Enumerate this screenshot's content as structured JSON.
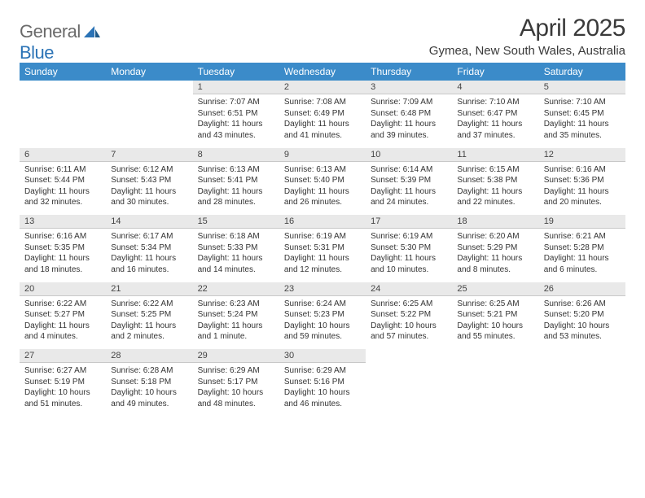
{
  "logo": {
    "text1": "General",
    "text2": "Blue",
    "color1": "#6a6a6a",
    "color2": "#2b73b6"
  },
  "title": "April 2025",
  "location": "Gymea, New South Wales, Australia",
  "header_bg": "#3b8bc9",
  "daynum_bg": "#e9e9e9",
  "days": [
    "Sunday",
    "Monday",
    "Tuesday",
    "Wednesday",
    "Thursday",
    "Friday",
    "Saturday"
  ],
  "weeks": [
    [
      null,
      null,
      {
        "n": "1",
        "sr": "7:07 AM",
        "ss": "6:51 PM",
        "dl": "11 hours and 43 minutes."
      },
      {
        "n": "2",
        "sr": "7:08 AM",
        "ss": "6:49 PM",
        "dl": "11 hours and 41 minutes."
      },
      {
        "n": "3",
        "sr": "7:09 AM",
        "ss": "6:48 PM",
        "dl": "11 hours and 39 minutes."
      },
      {
        "n": "4",
        "sr": "7:10 AM",
        "ss": "6:47 PM",
        "dl": "11 hours and 37 minutes."
      },
      {
        "n": "5",
        "sr": "7:10 AM",
        "ss": "6:45 PM",
        "dl": "11 hours and 35 minutes."
      }
    ],
    [
      {
        "n": "6",
        "sr": "6:11 AM",
        "ss": "5:44 PM",
        "dl": "11 hours and 32 minutes."
      },
      {
        "n": "7",
        "sr": "6:12 AM",
        "ss": "5:43 PM",
        "dl": "11 hours and 30 minutes."
      },
      {
        "n": "8",
        "sr": "6:13 AM",
        "ss": "5:41 PM",
        "dl": "11 hours and 28 minutes."
      },
      {
        "n": "9",
        "sr": "6:13 AM",
        "ss": "5:40 PM",
        "dl": "11 hours and 26 minutes."
      },
      {
        "n": "10",
        "sr": "6:14 AM",
        "ss": "5:39 PM",
        "dl": "11 hours and 24 minutes."
      },
      {
        "n": "11",
        "sr": "6:15 AM",
        "ss": "5:38 PM",
        "dl": "11 hours and 22 minutes."
      },
      {
        "n": "12",
        "sr": "6:16 AM",
        "ss": "5:36 PM",
        "dl": "11 hours and 20 minutes."
      }
    ],
    [
      {
        "n": "13",
        "sr": "6:16 AM",
        "ss": "5:35 PM",
        "dl": "11 hours and 18 minutes."
      },
      {
        "n": "14",
        "sr": "6:17 AM",
        "ss": "5:34 PM",
        "dl": "11 hours and 16 minutes."
      },
      {
        "n": "15",
        "sr": "6:18 AM",
        "ss": "5:33 PM",
        "dl": "11 hours and 14 minutes."
      },
      {
        "n": "16",
        "sr": "6:19 AM",
        "ss": "5:31 PM",
        "dl": "11 hours and 12 minutes."
      },
      {
        "n": "17",
        "sr": "6:19 AM",
        "ss": "5:30 PM",
        "dl": "11 hours and 10 minutes."
      },
      {
        "n": "18",
        "sr": "6:20 AM",
        "ss": "5:29 PM",
        "dl": "11 hours and 8 minutes."
      },
      {
        "n": "19",
        "sr": "6:21 AM",
        "ss": "5:28 PM",
        "dl": "11 hours and 6 minutes."
      }
    ],
    [
      {
        "n": "20",
        "sr": "6:22 AM",
        "ss": "5:27 PM",
        "dl": "11 hours and 4 minutes."
      },
      {
        "n": "21",
        "sr": "6:22 AM",
        "ss": "5:25 PM",
        "dl": "11 hours and 2 minutes."
      },
      {
        "n": "22",
        "sr": "6:23 AM",
        "ss": "5:24 PM",
        "dl": "11 hours and 1 minute."
      },
      {
        "n": "23",
        "sr": "6:24 AM",
        "ss": "5:23 PM",
        "dl": "10 hours and 59 minutes."
      },
      {
        "n": "24",
        "sr": "6:25 AM",
        "ss": "5:22 PM",
        "dl": "10 hours and 57 minutes."
      },
      {
        "n": "25",
        "sr": "6:25 AM",
        "ss": "5:21 PM",
        "dl": "10 hours and 55 minutes."
      },
      {
        "n": "26",
        "sr": "6:26 AM",
        "ss": "5:20 PM",
        "dl": "10 hours and 53 minutes."
      }
    ],
    [
      {
        "n": "27",
        "sr": "6:27 AM",
        "ss": "5:19 PM",
        "dl": "10 hours and 51 minutes."
      },
      {
        "n": "28",
        "sr": "6:28 AM",
        "ss": "5:18 PM",
        "dl": "10 hours and 49 minutes."
      },
      {
        "n": "29",
        "sr": "6:29 AM",
        "ss": "5:17 PM",
        "dl": "10 hours and 48 minutes."
      },
      {
        "n": "30",
        "sr": "6:29 AM",
        "ss": "5:16 PM",
        "dl": "10 hours and 46 minutes."
      },
      null,
      null,
      null
    ]
  ],
  "labels": {
    "sunrise": "Sunrise:",
    "sunset": "Sunset:",
    "daylight": "Daylight:"
  }
}
